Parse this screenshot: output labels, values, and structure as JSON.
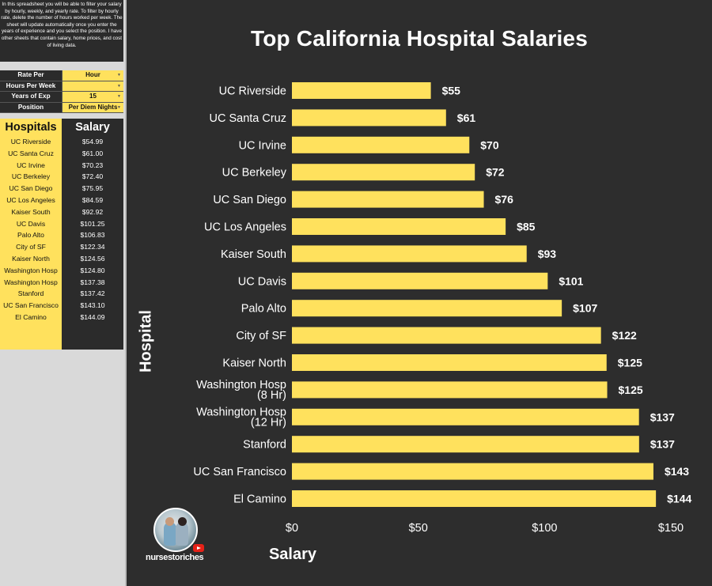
{
  "intro_text": "In this spreadsheet you will be able to filter your salary by hourly, weekly, and yearly rate. To filter by hourly rate, delete the number of hours worked per week. The sheet will update automatically once you enter the years of experience and you select the position. I have other sheets that contain salary, home prices, and cost of living data.",
  "controls": [
    {
      "label": "Rate Per",
      "value": "Hour"
    },
    {
      "label": "Hours Per Week",
      "value": ""
    },
    {
      "label": "Years of Exp",
      "value": "15"
    },
    {
      "label": "Position",
      "value": "Per Diem Nights"
    }
  ],
  "table": {
    "header_hospitals": "Hospitals",
    "header_salary": "Salary",
    "rows": [
      {
        "hospital": "UC Riverside",
        "salary": "$54.99"
      },
      {
        "hospital": "UC Santa Cruz",
        "salary": "$61.00"
      },
      {
        "hospital": "UC Irvine",
        "salary": "$70.23"
      },
      {
        "hospital": "UC Berkeley",
        "salary": "$72.40"
      },
      {
        "hospital": "UC San Diego",
        "salary": "$75.95"
      },
      {
        "hospital": "UC Los Angeles",
        "salary": "$84.59"
      },
      {
        "hospital": "Kaiser South",
        "salary": "$92.92"
      },
      {
        "hospital": "UC Davis",
        "salary": "$101.25"
      },
      {
        "hospital": "Palo Alto",
        "salary": "$106.83"
      },
      {
        "hospital": "City of SF",
        "salary": "$122.34"
      },
      {
        "hospital": "Kaiser North",
        "salary": "$124.56"
      },
      {
        "hospital": "Washington Hosp",
        "salary": "$124.80"
      },
      {
        "hospital": "Washington Hosp",
        "salary": "$137.38"
      },
      {
        "hospital": "Stanford",
        "salary": "$137.42"
      },
      {
        "hospital": "UC San Francisco",
        "salary": "$143.10"
      },
      {
        "hospital": "El Camino",
        "salary": "$144.09"
      }
    ]
  },
  "brand": {
    "name": "nursestoriches"
  },
  "colors": {
    "bar": "#ffe15d",
    "background": "#2d2d2d",
    "text": "#ffffff"
  },
  "chart_data": {
    "type": "bar",
    "orientation": "horizontal",
    "title": "Top California Hospital Salaries",
    "xlabel": "Salary",
    "ylabel": "Hospital",
    "xlim": [
      0,
      150
    ],
    "xticks": [
      {
        "value": 0,
        "label": "$0"
      },
      {
        "value": 50,
        "label": "$50"
      },
      {
        "value": 100,
        "label": "$100"
      },
      {
        "value": 150,
        "label": "$150"
      }
    ],
    "categories": [
      "UC Riverside",
      "UC Santa Cruz",
      "UC Irvine",
      "UC Berkeley",
      "UC San Diego",
      "UC Los Angeles",
      "Kaiser South",
      "UC Davis",
      "Palo Alto",
      "City of SF",
      "Kaiser North",
      "Washington Hosp\n(8 Hr)",
      "Washington Hosp\n(12 Hr)",
      "Stanford",
      "UC San Francisco",
      "El Camino"
    ],
    "values": [
      54.99,
      61.0,
      70.23,
      72.4,
      75.95,
      84.59,
      92.92,
      101.25,
      106.83,
      122.34,
      124.56,
      124.8,
      137.38,
      137.42,
      143.1,
      144.09
    ],
    "data_labels": [
      "$55",
      "$61",
      "$70",
      "$72",
      "$76",
      "$85",
      "$93",
      "$101",
      "$107",
      "$122",
      "$125",
      "$125",
      "$137",
      "$137",
      "$143",
      "$144"
    ],
    "grid": false
  }
}
